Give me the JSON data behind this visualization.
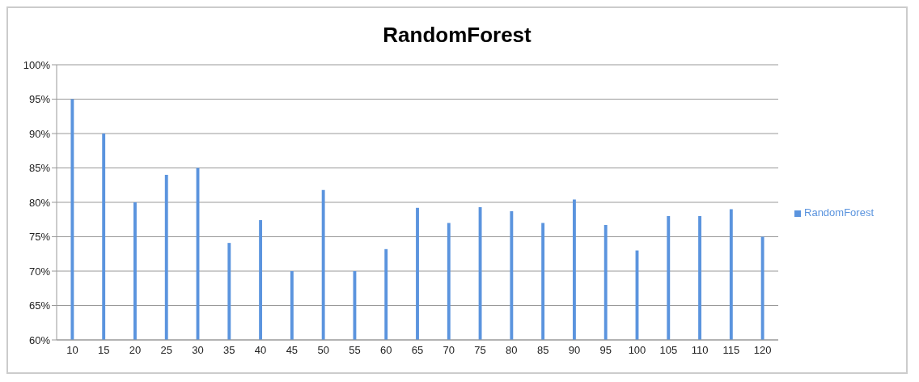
{
  "chart_data": {
    "type": "bar",
    "title": "RandomForest",
    "categories": [
      "10",
      "15",
      "20",
      "25",
      "30",
      "35",
      "40",
      "45",
      "50",
      "55",
      "60",
      "65",
      "70",
      "75",
      "80",
      "85",
      "90",
      "95",
      "100",
      "105",
      "110",
      "115",
      "120"
    ],
    "series": [
      {
        "name": "RandomForest",
        "color": "#5b94de",
        "values": [
          95,
          90,
          80,
          84,
          85,
          74.1,
          77.4,
          70,
          81.8,
          70,
          73.2,
          79.2,
          77,
          79.3,
          78.7,
          77,
          80.4,
          76.7,
          73,
          78,
          78,
          79,
          75
        ]
      }
    ],
    "ylim": [
      60,
      100
    ],
    "yticks": [
      {
        "value": 60,
        "label": "60%"
      },
      {
        "value": 65,
        "label": "65%"
      },
      {
        "value": 70,
        "label": "70%"
      },
      {
        "value": 75,
        "label": "75%"
      },
      {
        "value": 80,
        "label": "80%"
      },
      {
        "value": 85,
        "label": "85%"
      },
      {
        "value": 90,
        "label": "90%"
      },
      {
        "value": 95,
        "label": "95%"
      },
      {
        "value": 100,
        "label": "100%"
      }
    ],
    "grid": "y",
    "legend": "right"
  }
}
